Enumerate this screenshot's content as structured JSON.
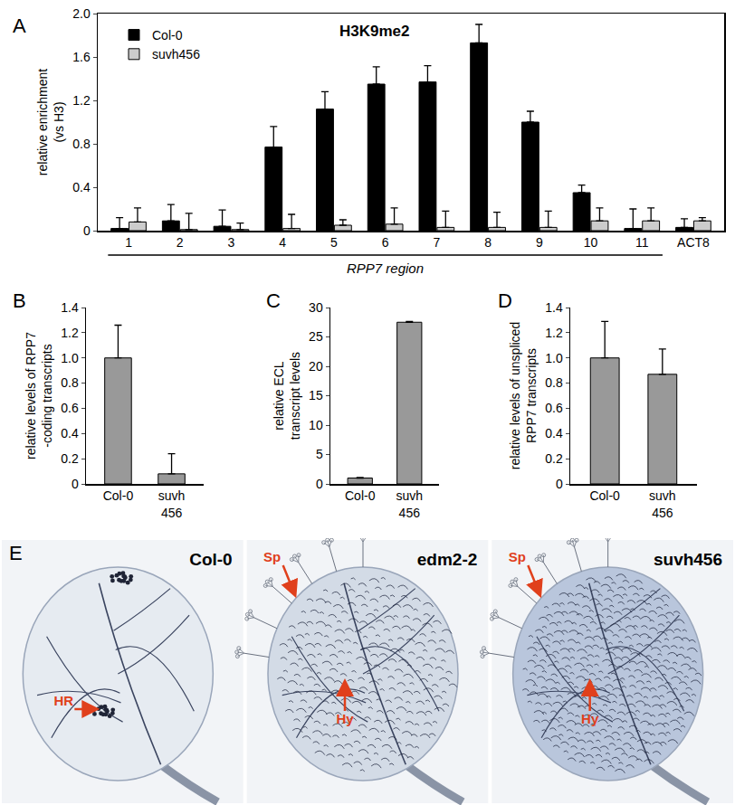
{
  "chart_data": [
    {
      "type": "bar",
      "annotations": [
        "A"
      ],
      "title": "H3K9me2",
      "categories": [
        "1",
        "2",
        "3",
        "4",
        "5",
        "6",
        "7",
        "8",
        "9",
        "10",
        "11",
        "ACT8"
      ],
      "xlabel": "RPP7 region",
      "ylabel": "relative enrichment\n(vs H3)",
      "series": [
        {
          "name": "Col-0",
          "color": "#000000",
          "values": [
            0.02,
            0.09,
            0.04,
            0.77,
            1.12,
            1.35,
            1.37,
            1.73,
            1.0,
            0.35,
            0.02,
            0.03
          ],
          "errors": [
            0.1,
            0.15,
            0.15,
            0.19,
            0.16,
            0.16,
            0.15,
            0.17,
            0.1,
            0.07,
            0.18,
            0.08
          ]
        },
        {
          "name": "suvh456",
          "color": "#cccccc",
          "values": [
            0.08,
            0.01,
            0.01,
            0.02,
            0.05,
            0.06,
            0.03,
            0.03,
            0.03,
            0.09,
            0.09,
            0.09
          ],
          "errors": [
            0.13,
            0.15,
            0.06,
            0.13,
            0.05,
            0.15,
            0.15,
            0.14,
            0.15,
            0.12,
            0.12,
            0.03
          ]
        }
      ],
      "ylim": [
        0,
        2
      ],
      "yticks": [
        0,
        0.4,
        0.8,
        1.2,
        1.6,
        {
          "value": 2,
          "label": "2.0"
        }
      ],
      "grid": false,
      "legend": "upper left"
    },
    {
      "type": "bar",
      "annotations": [
        "B"
      ],
      "categories": [
        "Col-0",
        "suvh\n456"
      ],
      "ylabel": "relative levels of RPP7\n-coding transcripts",
      "values": [
        1.0,
        0.08
      ],
      "errors": [
        0.26,
        0.16
      ],
      "color": "#999999",
      "ylim": [
        0,
        1.4
      ],
      "yticks": [
        0,
        0.2,
        0.4,
        0.6,
        0.8,
        {
          "value": 1,
          "label": "1.0"
        },
        1.2,
        1.4
      ],
      "grid": false
    },
    {
      "type": "bar",
      "annotations": [
        "C"
      ],
      "categories": [
        "Col-0",
        "suvh\n456"
      ],
      "ylabel": "relative ECL\ntranscript levels",
      "values": [
        1.0,
        27.5
      ],
      "errors": [
        0.1,
        0.15
      ],
      "color": "#999999",
      "ylim": [
        0,
        30
      ],
      "yticks": [
        0,
        5,
        10,
        15,
        20,
        25,
        30
      ],
      "grid": false
    },
    {
      "type": "bar",
      "annotations": [
        "D"
      ],
      "categories": [
        "Col-0",
        "suvh\n456"
      ],
      "ylabel": "relative levels of unspliced\nRPP7 transcripts",
      "values": [
        1.0,
        0.87
      ],
      "errors": [
        0.29,
        0.2
      ],
      "color": "#999999",
      "ylim": [
        0,
        1.4
      ],
      "yticks": [
        0,
        0.2,
        0.4,
        0.6,
        0.8,
        {
          "value": 1,
          "label": "1.0"
        },
        1.2,
        1.4
      ],
      "grid": false
    }
  ],
  "panel_e": {
    "annotations": [
      "E"
    ],
    "leaves": [
      {
        "title": "Col-0",
        "labels": [
          "HR"
        ]
      },
      {
        "title": "edm2-2",
        "labels": [
          "Sp",
          "Hy"
        ]
      },
      {
        "title": "suvh456",
        "labels": [
          "Sp",
          "Hy"
        ]
      }
    ]
  }
}
